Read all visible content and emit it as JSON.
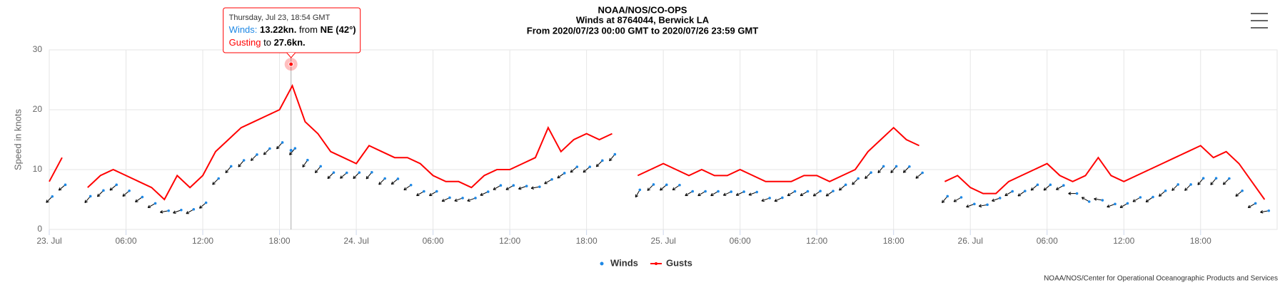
{
  "chart_data": {
    "type": "wind",
    "title": "NOAA/NOS/CO-OPS",
    "subtitle": "Winds at 8764044, Berwick LA",
    "subtitle2": "From 2020/07/23 00:00 GMT to 2020/07/26 23:59 GMT",
    "y_label": "Speed in knots",
    "credits": "NOAA/NOS/Center for Operational Oceanographic Products and Services",
    "ylim": [
      0,
      30
    ],
    "yticks": [
      0,
      10,
      20,
      30
    ],
    "grid": true,
    "xlim": [
      "2020-07-23T00:00",
      "2020-07-26T23:59"
    ],
    "xticks": [
      {
        "value": "2020-07-23T00:00",
        "label": "23. Jul"
      },
      {
        "value": "2020-07-23T06:00",
        "label": "06:00"
      },
      {
        "value": "2020-07-23T12:00",
        "label": "12:00"
      },
      {
        "value": "2020-07-23T18:00",
        "label": "18:00"
      },
      {
        "value": "2020-07-24T00:00",
        "label": "24. Jul"
      },
      {
        "value": "2020-07-24T06:00",
        "label": "06:00"
      },
      {
        "value": "2020-07-24T12:00",
        "label": "12:00"
      },
      {
        "value": "2020-07-24T18:00",
        "label": "18:00"
      },
      {
        "value": "2020-07-25T00:00",
        "label": "25. Jul"
      },
      {
        "value": "2020-07-25T06:00",
        "label": "06:00"
      },
      {
        "value": "2020-07-25T12:00",
        "label": "12:00"
      },
      {
        "value": "2020-07-25T18:00",
        "label": "18:00"
      },
      {
        "value": "2020-07-26T00:00",
        "label": "26. Jul"
      },
      {
        "value": "2020-07-26T06:00",
        "label": "06:00"
      },
      {
        "value": "2020-07-26T12:00",
        "label": "12:00"
      },
      {
        "value": "2020-07-26T18:00",
        "label": "18:00"
      }
    ],
    "x": [
      "2020-07-23T00:00",
      "2020-07-23T01:00",
      "2020-07-23T02:00",
      "2020-07-23T03:00",
      "2020-07-23T04:00",
      "2020-07-23T05:00",
      "2020-07-23T06:00",
      "2020-07-23T07:00",
      "2020-07-23T08:00",
      "2020-07-23T09:00",
      "2020-07-23T10:00",
      "2020-07-23T11:00",
      "2020-07-23T12:00",
      "2020-07-23T13:00",
      "2020-07-23T14:00",
      "2020-07-23T15:00",
      "2020-07-23T16:00",
      "2020-07-23T17:00",
      "2020-07-23T18:00",
      "2020-07-23T19:00",
      "2020-07-23T20:00",
      "2020-07-23T21:00",
      "2020-07-23T22:00",
      "2020-07-23T23:00",
      "2020-07-24T00:00",
      "2020-07-24T01:00",
      "2020-07-24T02:00",
      "2020-07-24T03:00",
      "2020-07-24T04:00",
      "2020-07-24T05:00",
      "2020-07-24T06:00",
      "2020-07-24T07:00",
      "2020-07-24T08:00",
      "2020-07-24T09:00",
      "2020-07-24T10:00",
      "2020-07-24T11:00",
      "2020-07-24T12:00",
      "2020-07-24T13:00",
      "2020-07-24T14:00",
      "2020-07-24T15:00",
      "2020-07-24T16:00",
      "2020-07-24T17:00",
      "2020-07-24T18:00",
      "2020-07-24T19:00",
      "2020-07-24T20:00",
      "2020-07-24T21:00",
      "2020-07-24T22:00",
      "2020-07-24T23:00",
      "2020-07-25T00:00",
      "2020-07-25T01:00",
      "2020-07-25T02:00",
      "2020-07-25T03:00",
      "2020-07-25T04:00",
      "2020-07-25T05:00",
      "2020-07-25T06:00",
      "2020-07-25T07:00",
      "2020-07-25T08:00",
      "2020-07-25T09:00",
      "2020-07-25T10:00",
      "2020-07-25T11:00",
      "2020-07-25T12:00",
      "2020-07-25T13:00",
      "2020-07-25T14:00",
      "2020-07-25T15:00",
      "2020-07-25T16:00",
      "2020-07-25T17:00",
      "2020-07-25T18:00",
      "2020-07-25T19:00",
      "2020-07-25T20:00",
      "2020-07-25T21:00",
      "2020-07-25T22:00",
      "2020-07-25T23:00",
      "2020-07-26T00:00",
      "2020-07-26T01:00",
      "2020-07-26T02:00",
      "2020-07-26T03:00",
      "2020-07-26T04:00",
      "2020-07-26T05:00",
      "2020-07-26T06:00",
      "2020-07-26T07:00",
      "2020-07-26T08:00",
      "2020-07-26T09:00",
      "2020-07-26T10:00",
      "2020-07-26T11:00",
      "2020-07-26T12:00",
      "2020-07-26T13:00",
      "2020-07-26T14:00",
      "2020-07-26T15:00",
      "2020-07-26T16:00",
      "2020-07-26T17:00",
      "2020-07-26T18:00",
      "2020-07-26T19:00",
      "2020-07-26T20:00",
      "2020-07-26T21:00",
      "2020-07-26T22:00",
      "2020-07-26T23:00"
    ],
    "series": [
      {
        "name": "Winds",
        "color": "#1e88e5",
        "arrow_color": "#000000",
        "values": [
          5,
          7,
          null,
          5,
          6,
          7,
          6,
          5,
          4,
          3,
          3,
          3,
          4,
          8,
          10,
          11,
          12,
          13,
          14,
          13,
          11,
          10,
          9,
          9,
          9,
          9,
          8,
          8,
          7,
          6,
          6,
          5,
          5,
          5,
          6,
          7,
          7,
          7,
          7,
          8,
          9,
          10,
          10,
          11,
          12,
          null,
          6,
          7,
          7,
          7,
          6,
          6,
          6,
          6,
          6,
          6,
          5,
          5,
          6,
          6,
          6,
          6,
          7,
          8,
          9,
          10,
          10,
          10,
          9,
          null,
          5,
          5,
          4,
          4,
          5,
          6,
          6,
          7,
          7,
          7,
          6,
          5,
          5,
          4,
          4,
          5,
          5,
          6,
          7,
          7,
          8,
          8,
          8,
          6,
          4,
          3
        ],
        "directions": [
          45,
          50,
          null,
          40,
          45,
          50,
          50,
          55,
          60,
          80,
          70,
          60,
          50,
          45,
          40,
          40,
          45,
          45,
          42,
          40,
          35,
          40,
          45,
          50,
          45,
          40,
          45,
          50,
          55,
          60,
          60,
          65,
          70,
          70,
          65,
          60,
          60,
          70,
          80,
          60,
          55,
          50,
          50,
          45,
          40,
          null,
          30,
          45,
          50,
          55,
          60,
          60,
          60,
          65,
          65,
          70,
          70,
          65,
          60,
          60,
          55,
          55,
          50,
          45,
          45,
          40,
          40,
          45,
          50,
          null,
          40,
          60,
          70,
          80,
          70,
          60,
          55,
          50,
          50,
          60,
          90,
          120,
          100,
          70,
          60,
          60,
          55,
          50,
          45,
          45,
          40,
          40,
          45,
          50,
          60,
          80
        ]
      },
      {
        "name": "Gusts",
        "color": "#ff0000",
        "values": [
          8,
          12,
          null,
          7,
          9,
          10,
          9,
          8,
          7,
          5,
          9,
          7,
          9,
          13,
          15,
          17,
          18,
          19,
          20,
          24,
          18,
          16,
          13,
          12,
          11,
          14,
          13,
          12,
          12,
          11,
          9,
          8,
          8,
          7,
          9,
          10,
          10,
          11,
          12,
          17,
          13,
          15,
          16,
          15,
          16,
          null,
          9,
          10,
          11,
          10,
          9,
          10,
          9,
          9,
          10,
          9,
          8,
          8,
          8,
          9,
          9,
          8,
          9,
          10,
          13,
          15,
          17,
          15,
          14,
          null,
          8,
          9,
          7,
          6,
          6,
          8,
          9,
          10,
          11,
          9,
          8,
          9,
          12,
          9,
          8,
          9,
          10,
          11,
          12,
          13,
          14,
          12,
          13,
          11,
          8,
          5
        ]
      }
    ],
    "tooltip": {
      "x": "2020-07-23T18:54",
      "heading": "Thursday, Jul 23, 18:54 GMT",
      "wind_label": "Winds:",
      "wind": 13.22,
      "wind_text": "13.22kn.",
      "from": "from",
      "direction": "NE",
      "degrees": 42,
      "degrees_text": "(42°)",
      "gust_label": "Gusting",
      "to": "to",
      "gust": 27.6,
      "gust_text": "27.6kn."
    }
  }
}
